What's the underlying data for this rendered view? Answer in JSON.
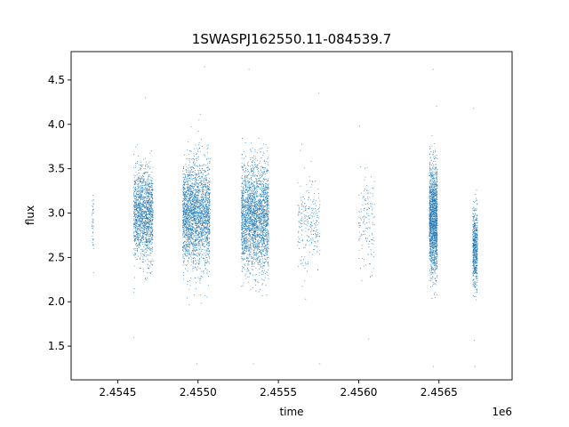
{
  "chart_data": {
    "type": "scatter",
    "title": "1SWASPJ162550.11-084539.7",
    "xlabel": "time",
    "ylabel": "flux",
    "x_offset_label": "1e6",
    "x_ticks": [
      {
        "value": 2454500,
        "label": "2.4545"
      },
      {
        "value": 2455000,
        "label": "2.4550"
      },
      {
        "value": 2455500,
        "label": "2.4555"
      },
      {
        "value": 2456000,
        "label": "2.4560"
      },
      {
        "value": 2456500,
        "label": "2.4565"
      }
    ],
    "y_ticks": [
      {
        "value": 1.5,
        "label": "1.5"
      },
      {
        "value": 2.0,
        "label": "2.0"
      },
      {
        "value": 2.5,
        "label": "2.5"
      },
      {
        "value": 3.0,
        "label": "3.0"
      },
      {
        "value": 3.5,
        "label": "3.5"
      },
      {
        "value": 4.0,
        "label": "4.0"
      },
      {
        "value": 4.5,
        "label": "4.5"
      }
    ],
    "xlim": [
      2454210,
      2456955
    ],
    "ylim": [
      1.12,
      4.82
    ],
    "grid": false,
    "marker_color": "#1f77b4",
    "marker_size": "small",
    "clusters": [
      {
        "x_start": 2454340,
        "x_end": 2454350,
        "center_flux": 2.92,
        "spread": 0.18,
        "min_flux": 2.33,
        "max_flux": 3.2,
        "approx_points": 40
      },
      {
        "x_start": 2454600,
        "x_end": 2454720,
        "center_flux": 2.98,
        "spread": 0.25,
        "min_flux": 1.6,
        "max_flux": 4.3,
        "approx_points": 1500
      },
      {
        "x_start": 2454905,
        "x_end": 2455075,
        "center_flux": 2.98,
        "spread": 0.3,
        "min_flux": 1.3,
        "max_flux": 4.65,
        "approx_points": 2400
      },
      {
        "x_start": 2455270,
        "x_end": 2455440,
        "center_flux": 2.95,
        "spread": 0.3,
        "min_flux": 1.3,
        "max_flux": 4.62,
        "approx_points": 2400
      },
      {
        "x_start": 2455620,
        "x_end": 2455760,
        "center_flux": 2.88,
        "spread": 0.25,
        "min_flux": 1.3,
        "max_flux": 4.35,
        "approx_points": 260
      },
      {
        "x_start": 2456000,
        "x_end": 2456100,
        "center_flux": 2.85,
        "spread": 0.28,
        "min_flux": 1.58,
        "max_flux": 3.98,
        "approx_points": 150
      },
      {
        "x_start": 2456440,
        "x_end": 2456490,
        "center_flux": 2.92,
        "spread": 0.3,
        "min_flux": 1.27,
        "max_flux": 4.62,
        "approx_points": 1600
      },
      {
        "x_start": 2456710,
        "x_end": 2456740,
        "center_flux": 2.62,
        "spread": 0.22,
        "min_flux": 1.27,
        "max_flux": 4.18,
        "approx_points": 600
      }
    ]
  }
}
